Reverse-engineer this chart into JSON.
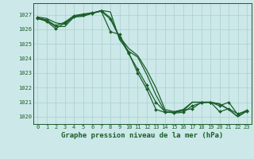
{
  "title": "Graphe pression niveau de la mer (hPa)",
  "bg_color": "#cce8e8",
  "grid_color": "#aacfcf",
  "line_color": "#1a5e2a",
  "marker_color": "#1a5e2a",
  "xlim": [
    -0.5,
    23.5
  ],
  "ylim": [
    1019.5,
    1027.8
  ],
  "yticks": [
    1020,
    1021,
    1022,
    1023,
    1024,
    1025,
    1026,
    1027
  ],
  "xticks": [
    0,
    1,
    2,
    3,
    4,
    5,
    6,
    7,
    8,
    9,
    10,
    11,
    12,
    13,
    14,
    15,
    16,
    17,
    18,
    19,
    20,
    21,
    22,
    23
  ],
  "lines": [
    {
      "x": [
        0,
        1,
        2,
        3,
        4,
        5,
        6,
        7,
        8,
        9,
        10,
        11,
        12,
        13,
        14,
        15,
        16,
        17,
        18,
        19,
        20,
        21,
        22,
        23
      ],
      "y": [
        1026.8,
        1026.65,
        1026.25,
        1026.5,
        1026.95,
        1027.05,
        1027.15,
        1027.25,
        1025.85,
        1025.65,
        1024.4,
        1023.0,
        1021.9,
        1020.5,
        1020.3,
        1020.3,
        1020.45,
        1020.55,
        1021.0,
        1021.0,
        1020.35,
        1020.55,
        1020.2,
        1020.4
      ],
      "marker": true,
      "lw": 0.9
    },
    {
      "x": [
        0,
        1,
        2,
        3,
        4,
        5,
        6,
        7,
        8,
        9,
        10,
        11,
        12,
        13,
        14,
        15,
        16,
        17,
        18,
        19,
        20,
        21,
        22,
        23
      ],
      "y": [
        1026.75,
        1026.6,
        1026.2,
        1026.2,
        1026.85,
        1026.9,
        1027.1,
        1027.3,
        1026.8,
        1025.5,
        1024.7,
        1024.2,
        1023.2,
        1022.0,
        1020.5,
        1020.35,
        1020.5,
        1021.0,
        1021.0,
        1021.0,
        1020.9,
        1020.5,
        1020.0,
        1020.4
      ],
      "marker": false,
      "lw": 0.9
    },
    {
      "x": [
        0,
        1,
        2,
        3,
        4,
        5,
        6,
        7,
        8,
        9,
        10,
        11,
        12,
        13,
        14,
        15,
        16,
        17,
        18,
        19,
        20,
        21,
        22,
        23
      ],
      "y": [
        1026.85,
        1026.75,
        1026.45,
        1026.35,
        1026.9,
        1027.0,
        1027.1,
        1027.3,
        1027.2,
        1025.3,
        1024.5,
        1024.1,
        1022.9,
        1021.5,
        1020.35,
        1020.3,
        1020.4,
        1021.0,
        1021.0,
        1021.0,
        1020.85,
        1020.5,
        1020.0,
        1020.4
      ],
      "marker": false,
      "lw": 0.9
    },
    {
      "x": [
        0,
        1,
        2,
        3,
        4,
        5,
        6,
        7,
        8,
        9,
        10,
        11,
        12,
        13,
        14,
        15,
        16,
        17,
        18,
        19,
        20,
        21,
        22,
        23
      ],
      "y": [
        1026.75,
        1026.55,
        1026.05,
        1026.45,
        1026.85,
        1027.0,
        1027.1,
        1027.25,
        1026.7,
        1025.45,
        1024.35,
        1023.25,
        1022.15,
        1021.0,
        1020.35,
        1020.25,
        1020.3,
        1020.75,
        1020.95,
        1021.0,
        1020.75,
        1021.0,
        1020.15,
        1020.45
      ],
      "marker": true,
      "lw": 0.9
    }
  ],
  "tick_fontsize": 5.0,
  "title_fontsize": 6.5,
  "figsize": [
    3.2,
    2.0
  ],
  "dpi": 100
}
